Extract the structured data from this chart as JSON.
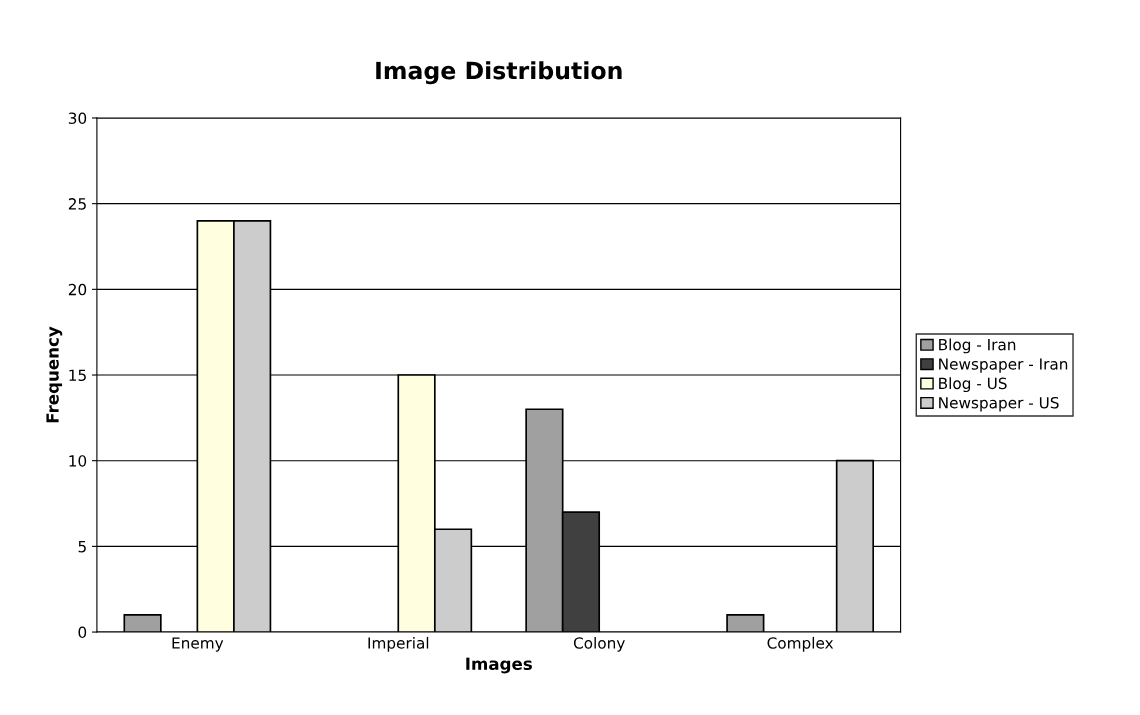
{
  "chart_data": {
    "type": "bar",
    "title": "Image Distribution",
    "xlabel": "Images",
    "ylabel": "Frequency",
    "categories": [
      "Enemy",
      "Imperial",
      "Colony",
      "Complex"
    ],
    "series": [
      {
        "name": "Blog - Iran",
        "color": "#a0a0a0",
        "values": [
          1,
          null,
          13,
          1
        ]
      },
      {
        "name": "Newspaper - Iran",
        "color": "#404040",
        "values": [
          null,
          null,
          7,
          null
        ]
      },
      {
        "name": "Blog - US",
        "color": "#ffffe0",
        "values": [
          24,
          15,
          null,
          null
        ]
      },
      {
        "name": "Newspaper - US",
        "color": "#cccccc",
        "values": [
          24,
          6,
          null,
          10
        ]
      }
    ],
    "ylim": [
      0,
      30
    ],
    "yticks": [
      0,
      5,
      10,
      15,
      20,
      25,
      30
    ],
    "grid": "y",
    "legend": "right"
  }
}
